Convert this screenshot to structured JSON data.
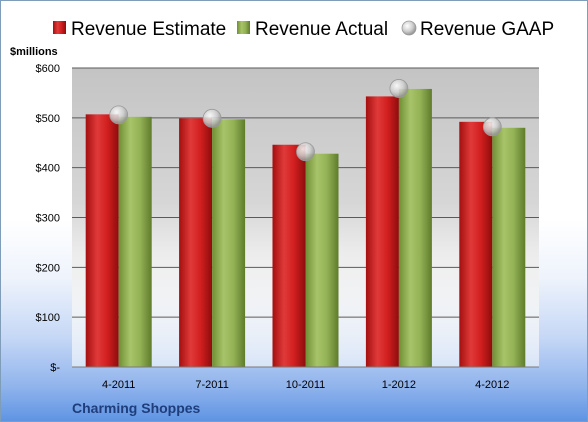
{
  "chart_data": {
    "type": "bar",
    "title": "",
    "company": "Charming Shoppes",
    "unit_label": "$millions",
    "categories": [
      "4-2011",
      "7-2011",
      "10-2011",
      "1-2012",
      "4-2012"
    ],
    "series": [
      {
        "name": "Revenue Estimate",
        "mark": "bar",
        "color": "#cc1f1f",
        "values": [
          507,
          499,
          446,
          543,
          492
        ]
      },
      {
        "name": "Revenue Actual",
        "mark": "bar",
        "color": "#8aab4a",
        "values": [
          502,
          497,
          428,
          558,
          480
        ]
      },
      {
        "name": "Revenue GAAP",
        "mark": "marker",
        "color": "#c8c8c8",
        "values": [
          506,
          499,
          432,
          559,
          482
        ]
      }
    ],
    "ylim": [
      0,
      600
    ],
    "y_ticks": [
      {
        "value": 0,
        "label": "$-"
      },
      {
        "value": 100,
        "label": "$100"
      },
      {
        "value": 200,
        "label": "$200"
      },
      {
        "value": 300,
        "label": "$300"
      },
      {
        "value": 400,
        "label": "$400"
      },
      {
        "value": 500,
        "label": "$500"
      },
      {
        "value": 600,
        "label": "$600"
      }
    ],
    "grid": true,
    "legend_position": "top"
  }
}
